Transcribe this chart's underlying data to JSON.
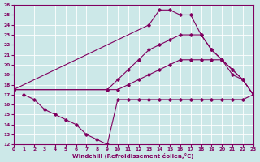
{
  "xlabel": "Windchill (Refroidissement éolien,°C)",
  "xlim": [
    0,
    23
  ],
  "ylim": [
    12,
    26
  ],
  "xticks": [
    0,
    1,
    2,
    3,
    4,
    5,
    6,
    7,
    8,
    9,
    10,
    11,
    12,
    13,
    14,
    15,
    16,
    17,
    18,
    19,
    20,
    21,
    22,
    23
  ],
  "yticks": [
    12,
    13,
    14,
    15,
    16,
    17,
    18,
    19,
    20,
    21,
    22,
    23,
    24,
    25,
    26
  ],
  "bg_color": "#cce8e8",
  "line_color": "#800060",
  "grid_color": "#ffffff",
  "series": [
    {
      "x": [
        0,
        13,
        14,
        15,
        16,
        17,
        18,
        19,
        20,
        21,
        22,
        23
      ],
      "y": [
        17.5,
        24.0,
        25.5,
        25.5,
        25.0,
        25.0,
        23.0,
        21.5,
        20.5,
        19.0,
        18.5,
        17.0
      ]
    },
    {
      "x": [
        0,
        9,
        10,
        11,
        12,
        13,
        14,
        15,
        16,
        17,
        18,
        19,
        20,
        21,
        22,
        23
      ],
      "y": [
        17.5,
        17.5,
        18.5,
        19.5,
        20.5,
        21.5,
        22.0,
        22.5,
        23.0,
        23.0,
        23.0,
        21.5,
        20.5,
        19.5,
        18.5,
        17.0
      ]
    },
    {
      "x": [
        1,
        2,
        3,
        4,
        5,
        6,
        7,
        8,
        9,
        10,
        11,
        12,
        13,
        14,
        15,
        16,
        17,
        18,
        19,
        20,
        21,
        22,
        23
      ],
      "y": [
        17.0,
        16.5,
        15.5,
        15.0,
        14.5,
        14.0,
        13.0,
        12.5,
        12.0,
        16.5,
        16.5,
        16.5,
        16.5,
        16.5,
        16.5,
        16.5,
        16.5,
        16.5,
        16.5,
        16.5,
        16.5,
        16.5,
        17.0
      ]
    },
    {
      "x": [
        0,
        9,
        10,
        11,
        12,
        13,
        14,
        15,
        16,
        17,
        18,
        19,
        20,
        21,
        22,
        23
      ],
      "y": [
        17.5,
        17.5,
        17.5,
        18.0,
        18.5,
        19.0,
        19.5,
        20.0,
        20.5,
        20.5,
        20.5,
        20.5,
        20.5,
        19.5,
        18.5,
        17.0
      ]
    }
  ]
}
